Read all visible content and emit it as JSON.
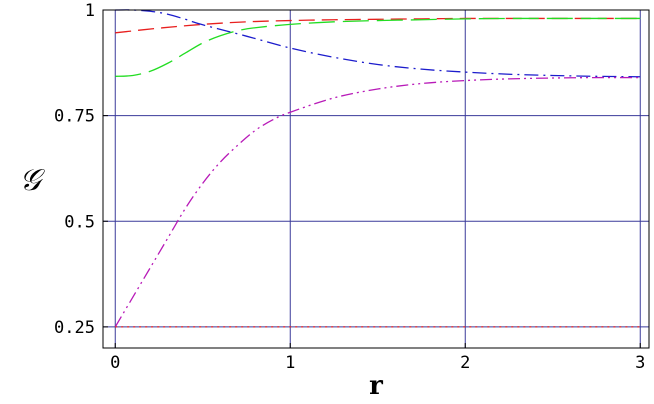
{
  "chart_data": {
    "type": "line",
    "title": "",
    "xlabel": "r",
    "ylabel": "𝒢",
    "xlim": [
      -0.07,
      3.05
    ],
    "ylim": [
      0.2,
      1.0
    ],
    "x_ticks": [
      0,
      1,
      2,
      3
    ],
    "x_tick_labels": [
      "0",
      "1",
      "2",
      "3"
    ],
    "y_ticks": [
      0.25,
      0.5,
      0.75,
      1
    ],
    "y_tick_labels": [
      "0.25",
      "0.5",
      "0.75",
      "1"
    ],
    "grid": true,
    "colors": {
      "grid": "#3a3a9a",
      "frame": "#000000",
      "red": "#e8201f",
      "green": "#22dd22",
      "blue": "#1c1ccc",
      "magenta": "#b81ab8"
    },
    "series": [
      {
        "color": "red",
        "style": "dashed",
        "x": [
          0,
          0.25,
          0.5,
          0.75,
          1,
          1.25,
          1.5,
          1.75,
          2,
          2.25,
          2.5,
          2.75,
          3
        ],
        "y": [
          0.946,
          0.957,
          0.966,
          0.972,
          0.975,
          0.977,
          0.978,
          0.979,
          0.98,
          0.98,
          0.98,
          0.98,
          0.98
        ]
      },
      {
        "color": "green",
        "style": "long-dash",
        "x": [
          0,
          0.1,
          0.2,
          0.3,
          0.4,
          0.5,
          0.6,
          0.7,
          0.8,
          1,
          1.25,
          1.5,
          1.75,
          2,
          2.25,
          2.5,
          2.75,
          3
        ],
        "y": [
          0.843,
          0.845,
          0.855,
          0.874,
          0.898,
          0.922,
          0.939,
          0.951,
          0.958,
          0.966,
          0.972,
          0.975,
          0.977,
          0.979,
          0.98,
          0.98,
          0.98,
          0.98
        ]
      },
      {
        "color": "blue",
        "style": "dash-dot",
        "x": [
          0,
          0.1,
          0.2,
          0.3,
          0.4,
          0.5,
          0.75,
          1,
          1.25,
          1.5,
          1.75,
          2,
          2.25,
          2.5,
          2.75,
          3
        ],
        "y": [
          1.0,
          1.0,
          0.997,
          0.99,
          0.978,
          0.965,
          0.938,
          0.91,
          0.888,
          0.871,
          0.86,
          0.853,
          0.848,
          0.845,
          0.843,
          0.842
        ]
      },
      {
        "color": "magenta",
        "style": "dash-dot-dot",
        "x": [
          0,
          0.1,
          0.2,
          0.3,
          0.4,
          0.5,
          0.6,
          0.7,
          0.8,
          0.9,
          1,
          1.25,
          1.5,
          1.75,
          2,
          2.25,
          2.5,
          2.75,
          3
        ],
        "y": [
          0.25,
          0.32,
          0.39,
          0.46,
          0.53,
          0.59,
          0.64,
          0.68,
          0.715,
          0.74,
          0.758,
          0.792,
          0.813,
          0.826,
          0.833,
          0.837,
          0.839,
          0.84,
          0.84
        ]
      },
      {
        "color": "red",
        "style": "dotted",
        "x": [
          0,
          3
        ],
        "y": [
          0.25,
          0.25
        ]
      }
    ]
  }
}
